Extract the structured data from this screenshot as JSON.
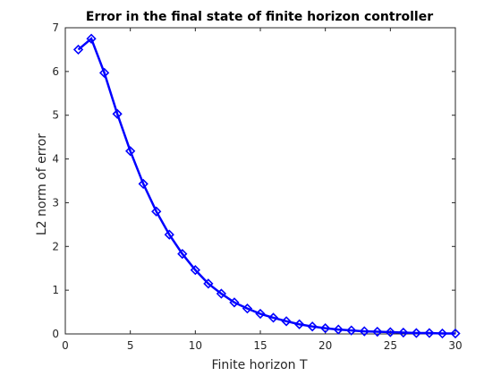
{
  "chart_data": {
    "type": "line",
    "title": "Error in the final state of finite horizon controller",
    "xlabel": "Finite horizon T",
    "ylabel": "L2 norm of error",
    "xlim": [
      0,
      30
    ],
    "ylim": [
      0,
      7
    ],
    "xticks": [
      0,
      5,
      10,
      15,
      20,
      25,
      30
    ],
    "yticks": [
      0,
      1,
      2,
      3,
      4,
      5,
      6,
      7
    ],
    "grid": false,
    "line_color": "#0000ff",
    "marker_color": "#0000ff",
    "marker": "diamond",
    "x": [
      1,
      2,
      3,
      4,
      5,
      6,
      7,
      8,
      9,
      10,
      11,
      12,
      13,
      14,
      15,
      16,
      17,
      18,
      19,
      20,
      21,
      22,
      23,
      24,
      25,
      26,
      27,
      28,
      29,
      30
    ],
    "values": [
      6.5,
      6.75,
      5.97,
      5.03,
      4.18,
      3.43,
      2.8,
      2.27,
      1.83,
      1.46,
      1.15,
      0.92,
      0.72,
      0.58,
      0.46,
      0.37,
      0.29,
      0.22,
      0.17,
      0.13,
      0.1,
      0.08,
      0.06,
      0.05,
      0.04,
      0.03,
      0.02,
      0.02,
      0.01,
      0.01
    ]
  }
}
